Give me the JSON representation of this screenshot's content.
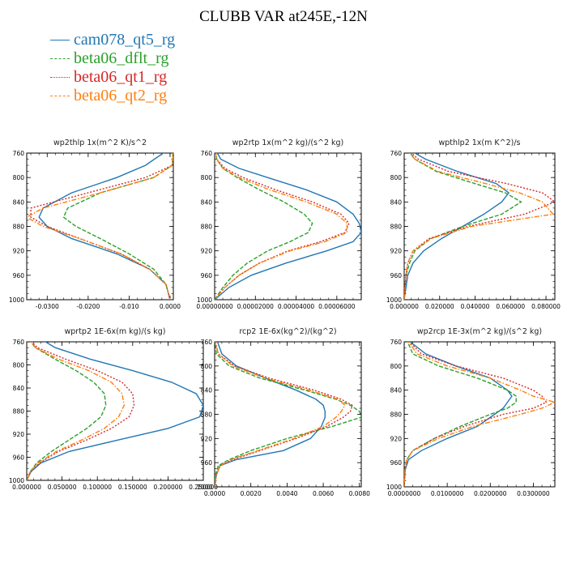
{
  "title": "CLUBB VAR at245E,-12N",
  "legend": [
    {
      "name": "cam078_qt5_rg",
      "color": "#2277b4",
      "dash": "solid"
    },
    {
      "name": "beta06_dflt_rg",
      "color": "#2ca02c",
      "dash": "dashed"
    },
    {
      "name": "beta06_qt1_rg",
      "color": "#d62728",
      "dash": "dotted"
    },
    {
      "name": "beta06_qt2_rg",
      "color": "#ff7f0e",
      "dash": "dashdot"
    }
  ],
  "chart_data": [
    {
      "type": "line",
      "title": "wp2thlp   1x(m^2 K)/s^2",
      "xlim": [
        -0.035,
        0.0008
      ],
      "ylim": [
        760,
        1000
      ],
      "y_reversed": true,
      "xticks": [
        "-0.0300",
        "-0.0200",
        "-0.010",
        "0.0000"
      ],
      "xtick_values": [
        -0.03,
        -0.02,
        -0.01,
        0
      ],
      "yticks": [
        "760",
        "800",
        "840",
        "880",
        "920",
        "960",
        "1000"
      ],
      "y": [
        750,
        780,
        800,
        825,
        850,
        865,
        880,
        900,
        925,
        950,
        975,
        1000
      ],
      "series": [
        {
          "name": "cam078_qt5_rg",
          "values": [
            0.0005,
            -0.006,
            -0.013,
            -0.024,
            -0.031,
            -0.032,
            -0.03,
            -0.024,
            -0.013,
            -0.005,
            -0.001,
            0
          ]
        },
        {
          "name": "beta06_dflt_rg",
          "values": [
            0.0008,
            0.0005,
            -0.004,
            -0.017,
            -0.025,
            -0.026,
            -0.023,
            -0.017,
            -0.01,
            -0.004,
            -0.001,
            0
          ]
        },
        {
          "name": "beta06_qt1_rg",
          "values": [
            0.0008,
            0.0006,
            -0.006,
            -0.02,
            -0.034,
            -0.034,
            -0.03,
            -0.022,
            -0.012,
            -0.005,
            -0.001,
            0
          ]
        },
        {
          "name": "beta06_qt2_rg",
          "values": [
            0.0008,
            0.0006,
            -0.004,
            -0.017,
            -0.031,
            -0.035,
            -0.031,
            -0.022,
            -0.012,
            -0.005,
            -0.001,
            0
          ]
        }
      ]
    },
    {
      "type": "line",
      "title": "wp2rtp   1x(m^2 kg)/(s^2 kg)",
      "xlim": [
        0,
        7.2e-05
      ],
      "ylim": [
        760,
        1000
      ],
      "y_reversed": true,
      "xticks": [
        "0.00000000",
        "0.00002000",
        "0.00004000",
        "0.00006000"
      ],
      "xtick_values": [
        0,
        2e-05,
        4e-05,
        6e-05
      ],
      "yticks": [
        "760",
        "800",
        "840",
        "880",
        "920",
        "960",
        "1000"
      ],
      "y": [
        755,
        770,
        785,
        800,
        820,
        840,
        860,
        875,
        890,
        905,
        920,
        940,
        960,
        980,
        1000
      ],
      "series": [
        {
          "name": "cam078_qt5_rg",
          "values": [
            5e-07,
            3e-06,
            1.2e-05,
            2.6e-05,
            4.5e-05,
            6e-05,
            6.8e-05,
            7.1e-05,
            7.2e-05,
            6.8e-05,
            5.5e-05,
            3.5e-05,
            1.8e-05,
            7e-06,
            0
          ]
        },
        {
          "name": "beta06_dflt_rg",
          "values": [
            5e-07,
            1e-06,
            4e-06,
            1.1e-05,
            2.2e-05,
            3.4e-05,
            4.4e-05,
            4.8e-05,
            4.6e-05,
            3.7e-05,
            2.6e-05,
            1.6e-05,
            9e-06,
            4e-06,
            0
          ]
        },
        {
          "name": "beta06_qt1_rg",
          "values": [
            5e-07,
            1e-06,
            5e-06,
            1.4e-05,
            3e-05,
            4.8e-05,
            6.2e-05,
            6.6e-05,
            6.4e-05,
            5.2e-05,
            3.6e-05,
            2.2e-05,
            1.2e-05,
            5e-06,
            0
          ]
        },
        {
          "name": "beta06_qt2_rg",
          "values": [
            5e-07,
            1e-06,
            4e-06,
            1.2e-05,
            2.7e-05,
            4.5e-05,
            6e-05,
            6.5e-05,
            6.5e-05,
            5.4e-05,
            3.7e-05,
            2.2e-05,
            1.2e-05,
            5e-06,
            0
          ]
        }
      ]
    },
    {
      "type": "line",
      "title": "wpthlp2   1x(m K^2)/s",
      "xlim": [
        0,
        0.085
      ],
      "ylim": [
        760,
        1000
      ],
      "y_reversed": true,
      "xticks": [
        "0.000000",
        "0.020000",
        "0.040000",
        "0.060000",
        "0.080000"
      ],
      "xtick_values": [
        0,
        0.02,
        0.04,
        0.06,
        0.08
      ],
      "yticks": [
        "760",
        "800",
        "840",
        "880",
        "920",
        "960",
        "1000"
      ],
      "y": [
        755,
        770,
        790,
        810,
        825,
        840,
        860,
        880,
        900,
        920,
        940,
        960,
        980,
        1000
      ],
      "series": [
        {
          "name": "cam078_qt5_rg",
          "values": [
            0.003,
            0.012,
            0.03,
            0.052,
            0.059,
            0.055,
            0.045,
            0.033,
            0.021,
            0.011,
            0.005,
            0.002,
            0.001,
            0
          ]
        },
        {
          "name": "beta06_dflt_rg",
          "values": [
            0.002,
            0.006,
            0.018,
            0.04,
            0.057,
            0.066,
            0.055,
            0.033,
            0.015,
            0.006,
            0.003,
            0.001,
            0.0005,
            0
          ]
        },
        {
          "name": "beta06_qt1_rg",
          "values": [
            0.002,
            0.008,
            0.025,
            0.058,
            0.078,
            0.085,
            0.068,
            0.036,
            0.014,
            0.005,
            0.002,
            0.001,
            0.0005,
            0
          ]
        },
        {
          "name": "beta06_qt2_rg",
          "values": [
            0.002,
            0.006,
            0.019,
            0.046,
            0.065,
            0.078,
            0.084,
            0.038,
            0.015,
            0.005,
            0.002,
            0.001,
            0.0005,
            0
          ]
        }
      ]
    },
    {
      "type": "line",
      "title": "wprtp2   1E-6x(m kg)/(s kg)",
      "xlim": [
        0,
        0.25
      ],
      "ylim": [
        760,
        1000
      ],
      "y_reversed": true,
      "xticks": [
        "0.000000",
        "0.050000",
        "0.100000",
        "0.150000",
        "0.200000",
        "0.250000"
      ],
      "xtick_values": [
        0,
        0.05,
        0.1,
        0.15,
        0.2,
        0.25
      ],
      "yticks": [
        "760",
        "800",
        "840",
        "880",
        "920",
        "960",
        "1000"
      ],
      "y": [
        755,
        770,
        790,
        810,
        830,
        850,
        870,
        890,
        910,
        930,
        950,
        970,
        985,
        1000
      ],
      "series": [
        {
          "name": "cam078_qt5_rg",
          "values": [
            0.02,
            0.04,
            0.09,
            0.15,
            0.205,
            0.24,
            0.25,
            0.245,
            0.2,
            0.13,
            0.06,
            0.02,
            0.006,
            0
          ]
        },
        {
          "name": "beta06_dflt_rg",
          "values": [
            0.003,
            0.012,
            0.04,
            0.07,
            0.095,
            0.11,
            0.112,
            0.105,
            0.085,
            0.06,
            0.035,
            0.014,
            0.005,
            0
          ]
        },
        {
          "name": "beta06_qt1_rg",
          "values": [
            0.003,
            0.015,
            0.055,
            0.1,
            0.135,
            0.15,
            0.152,
            0.145,
            0.12,
            0.085,
            0.045,
            0.018,
            0.006,
            0
          ]
        },
        {
          "name": "beta06_qt2_rg",
          "values": [
            0.003,
            0.012,
            0.045,
            0.088,
            0.12,
            0.135,
            0.138,
            0.13,
            0.11,
            0.078,
            0.042,
            0.016,
            0.005,
            0
          ]
        }
      ]
    },
    {
      "type": "line",
      "title": "rcp2   1E-6x(kg^2)/(kg^2)",
      "xlim": [
        0,
        0.0081
      ],
      "ylim": [
        760,
        1000
      ],
      "y_reversed": true,
      "xticks": [
        "0.0000",
        "0.0020",
        "0.0040",
        "0.0060",
        "0.0080"
      ],
      "xtick_values": [
        0,
        0.002,
        0.004,
        0.006,
        0.008
      ],
      "yticks": [
        "760",
        "800",
        "840",
        "880",
        "920",
        "960",
        "1000"
      ],
      "y": [
        755,
        780,
        800,
        820,
        840,
        855,
        865,
        875,
        885,
        900,
        920,
        940,
        955,
        965,
        980,
        1000
      ],
      "series": [
        {
          "name": "cam078_qt5_rg",
          "values": [
            0.0001,
            0.0004,
            0.0012,
            0.0028,
            0.0045,
            0.0056,
            0.006,
            0.0061,
            0.0061,
            0.0059,
            0.0053,
            0.0038,
            0.0012,
            0.0003,
            0.0001,
            0
          ]
        },
        {
          "name": "beta06_dflt_rg",
          "values": [
            0,
            0.0001,
            0.0008,
            0.0025,
            0.005,
            0.0067,
            0.0075,
            0.008,
            0.0081,
            0.0065,
            0.004,
            0.002,
            0.0008,
            0.0002,
            5e-05,
            0
          ]
        },
        {
          "name": "beta06_qt1_rg",
          "values": [
            0,
            0.0002,
            0.0011,
            0.003,
            0.0055,
            0.007,
            0.0076,
            0.0075,
            0.0071,
            0.0062,
            0.0045,
            0.0025,
            0.001,
            0.0003,
            0.0001,
            0
          ]
        },
        {
          "name": "beta06_qt2_rg",
          "values": [
            0,
            0.0002,
            0.001,
            0.0028,
            0.0052,
            0.0068,
            0.0072,
            0.007,
            0.0067,
            0.006,
            0.0044,
            0.0024,
            0.0009,
            0.0003,
            0.0001,
            0
          ]
        }
      ]
    },
    {
      "type": "line",
      "title": "wp2rcp   1E-3x(m^2 kg)/(s^2 kg)",
      "xlim": [
        0,
        0.035
      ],
      "ylim": [
        760,
        1000
      ],
      "y_reversed": true,
      "xticks": [
        "0.0000000",
        "0.0100000",
        "0.0200000",
        "0.0300000"
      ],
      "xtick_values": [
        0,
        0.01,
        0.02,
        0.03
      ],
      "yticks": [
        "760",
        "800",
        "840",
        "880",
        "920",
        "960",
        "1000"
      ],
      "y": [
        755,
        780,
        800,
        820,
        840,
        850,
        860,
        870,
        880,
        900,
        920,
        940,
        955,
        970,
        985,
        1000
      ],
      "series": [
        {
          "name": "cam078_qt5_rg",
          "values": [
            0.0005,
            0.005,
            0.012,
            0.02,
            0.024,
            0.025,
            0.024,
            0.023,
            0.021,
            0.017,
            0.01,
            0.004,
            0.001,
            0.0003,
            0.0001,
            0
          ]
        },
        {
          "name": "beta06_dflt_rg",
          "values": [
            0.0005,
            0.002,
            0.008,
            0.017,
            0.024,
            0.026,
            0.026,
            0.024,
            0.02,
            0.013,
            0.007,
            0.002,
            0.0006,
            0.0002,
            0.0001,
            0
          ]
        },
        {
          "name": "beta06_qt1_rg",
          "values": [
            0.0005,
            0.004,
            0.012,
            0.023,
            0.03,
            0.032,
            0.033,
            0.03,
            0.023,
            0.014,
            0.007,
            0.002,
            0.0006,
            0.0002,
            0.0001,
            0
          ]
        },
        {
          "name": "beta06_qt2_rg",
          "values": [
            0.0005,
            0.003,
            0.01,
            0.02,
            0.027,
            0.03,
            0.035,
            0.032,
            0.027,
            0.016,
            0.008,
            0.002,
            0.0006,
            0.0002,
            0.0001,
            0
          ]
        }
      ]
    }
  ]
}
